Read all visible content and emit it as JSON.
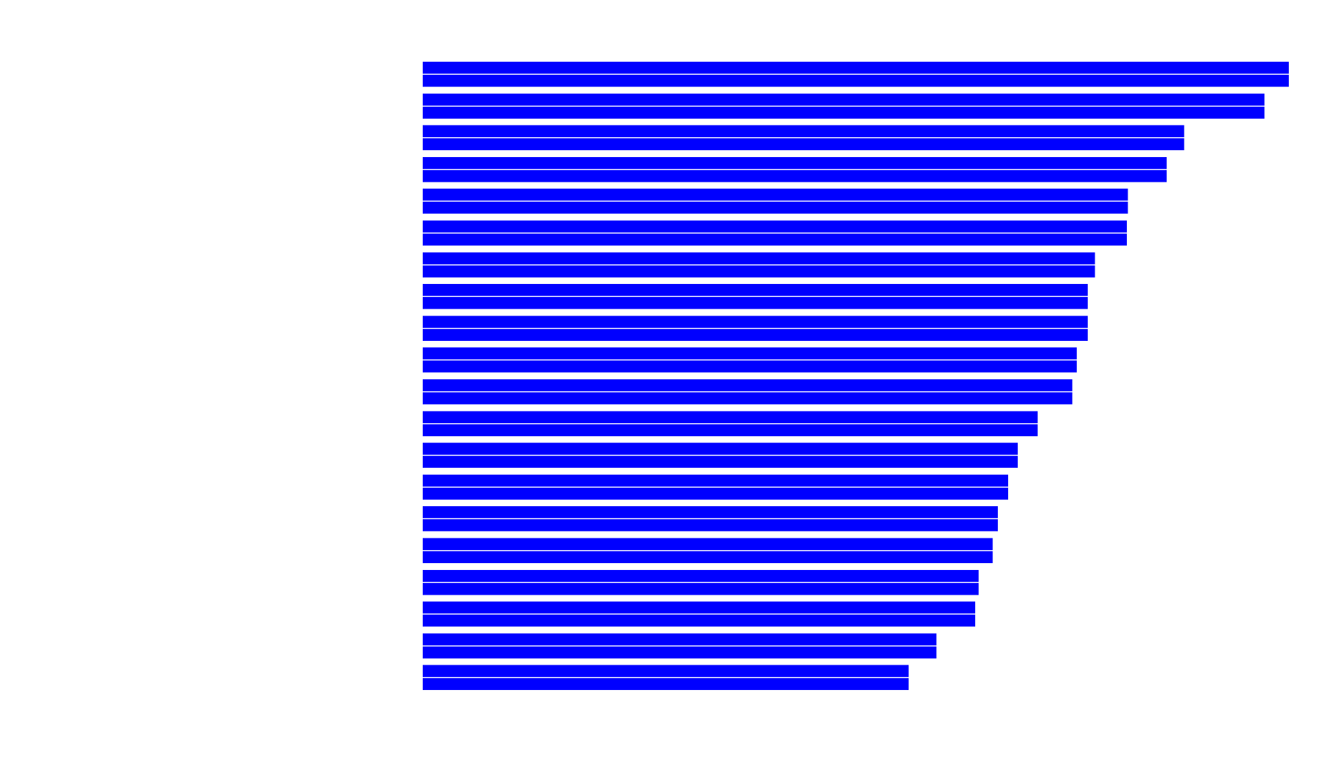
{
  "chart_data": {
    "type": "bar",
    "orientation": "horizontal",
    "title": "",
    "xlabel": "",
    "ylabel": "",
    "legend": "none",
    "grid": false,
    "xlim": [
      0,
      1
    ],
    "categories": [
      "",
      "",
      "",
      "",
      "",
      "",
      "",
      "",
      "",
      "",
      "",
      "",
      "",
      "",
      "",
      "",
      "",
      "",
      "",
      ""
    ],
    "series": [
      {
        "values": [
          1.0,
          0.972,
          0.879,
          0.859,
          0.814,
          0.813,
          0.776,
          0.768,
          0.768,
          0.755,
          0.75,
          0.71,
          0.687,
          0.676,
          0.664,
          0.658,
          0.642,
          0.638,
          0.593,
          0.561
        ],
        "color": "#0000ff"
      },
      {
        "values": [
          1.0,
          0.972,
          0.879,
          0.859,
          0.814,
          0.813,
          0.776,
          0.768,
          0.768,
          0.755,
          0.75,
          0.71,
          0.687,
          0.676,
          0.664,
          0.658,
          0.642,
          0.638,
          0.593,
          0.561
        ],
        "color": "#0000ff"
      }
    ]
  }
}
